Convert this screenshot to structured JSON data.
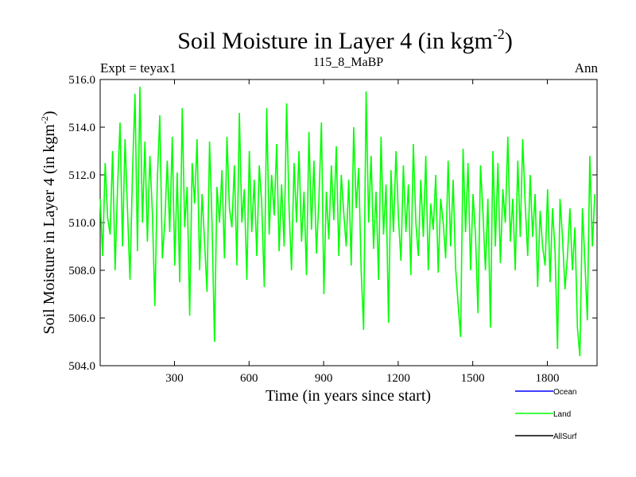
{
  "title": "Soil Moisture in Layer 4 (in kgm",
  "title_sup": "-2",
  "title_close": ")",
  "subtitle_left": "Expt = teyax1",
  "subtitle_center": "115_8_MaBP",
  "subtitle_right": "Ann",
  "chart_data": {
    "type": "line",
    "xlabel": "Time (in years since start)",
    "ylabel": "Soil Moisture in Layer 4 (in kgm",
    "ylabel_sup": "-2",
    "ylabel_close": ")",
    "xlim": [
      1,
      2000
    ],
    "ylim": [
      504.0,
      516.0
    ],
    "x_ticks": [
      300,
      600,
      900,
      1200,
      1500,
      1800
    ],
    "x_tick_labels": [
      "300",
      "600",
      "900",
      "1200",
      "1500",
      "1800"
    ],
    "y_ticks": [
      504.0,
      506.0,
      508.0,
      510.0,
      512.0,
      514.0,
      516.0
    ],
    "y_tick_labels": [
      "504.0",
      "506.0",
      "508.0",
      "510.0",
      "512.0",
      "514.0",
      "516.0"
    ],
    "legend_position": "bottom-right, outside plot",
    "series": [
      {
        "name": "Ocean",
        "color": "#0000ff",
        "values": []
      },
      {
        "name": "Land",
        "color": "#00ff00",
        "x_step": 10,
        "x_start": 1,
        "values": [
          511.0,
          508.6,
          512.5,
          510.2,
          509.5,
          513.0,
          508.0,
          511.5,
          514.2,
          509.0,
          513.5,
          510.5,
          507.6,
          512.0,
          515.4,
          508.8,
          515.7,
          510.0,
          513.4,
          509.2,
          512.8,
          510.4,
          506.5,
          511.8,
          514.5,
          508.5,
          510.0,
          512.6,
          509.6,
          513.6,
          508.2,
          512.1,
          507.5,
          514.8,
          509.8,
          511.5,
          506.1,
          512.5,
          510.8,
          513.5,
          508.0,
          511.2,
          509.2,
          507.1,
          513.4,
          510.0,
          505.0,
          511.5,
          510.0,
          512.2,
          508.5,
          513.6,
          510.6,
          509.8,
          512.4,
          508.2,
          514.6,
          510.0,
          511.4,
          507.6,
          513.0,
          509.6,
          511.8,
          508.6,
          512.4,
          510.8,
          507.3,
          514.8,
          509.5,
          512.0,
          510.3,
          513.3,
          508.8,
          511.6,
          509.0,
          515.0,
          510.6,
          508.0,
          512.5,
          510.0,
          513.0,
          509.2,
          511.3,
          507.8,
          513.8,
          509.7,
          512.6,
          508.7,
          510.9,
          514.2,
          507.0,
          511.3,
          509.3,
          512.4,
          510.1,
          513.2,
          508.6,
          512.0,
          510.4,
          509.0,
          511.8,
          508.2,
          514.0,
          510.6,
          512.3,
          508.0,
          505.5,
          515.5,
          510.0,
          512.8,
          508.9,
          511.3,
          507.6,
          513.6,
          509.5,
          511.6,
          505.8,
          512.2,
          509.6,
          513.0,
          510.2,
          508.4,
          512.4,
          509.6,
          511.6,
          507.8,
          513.3,
          510.0,
          508.6,
          511.8,
          509.4,
          512.8,
          508.0,
          510.8,
          509.7,
          512.0,
          507.9,
          511.0,
          510.0,
          508.5,
          512.6,
          509.0,
          511.8,
          508.1,
          506.6,
          505.2,
          513.1,
          509.6,
          512.5,
          508.0,
          511.2,
          509.5,
          506.2,
          512.4,
          510.4,
          508.0,
          511.0,
          505.6,
          513.0,
          509.0,
          512.5,
          508.3,
          511.4,
          510.0,
          513.6,
          509.2,
          511.0,
          508.0,
          512.6,
          509.4,
          513.5,
          510.8,
          508.6,
          512.0,
          509.4,
          511.2,
          507.3,
          510.5,
          509.0,
          508.2,
          511.4,
          507.5,
          510.6,
          508.8,
          504.7,
          511.0,
          509.4,
          507.2,
          508.6,
          510.6,
          508.0,
          509.8,
          505.6,
          504.4,
          510.6,
          508.4,
          505.9,
          512.8,
          509.0,
          511.2
        ]
      },
      {
        "name": "AllSurf",
        "color": "#000000",
        "values": []
      }
    ]
  }
}
